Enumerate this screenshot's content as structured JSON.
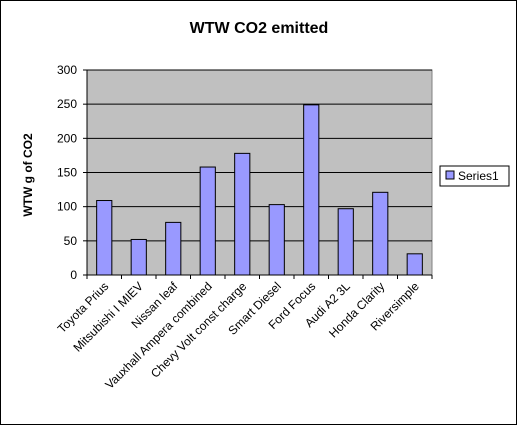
{
  "chart_data": {
    "type": "bar",
    "title": "WTW CO2 emitted",
    "xlabel": "",
    "ylabel": "WTW g of CO2",
    "ylim": [
      0,
      300
    ],
    "yticks": [
      0,
      50,
      100,
      150,
      200,
      250,
      300
    ],
    "grid": true,
    "legend_position": "right",
    "categories": [
      "Toyota Prius",
      "Mitsubishi I MIEV",
      "Nissan leaf",
      "Vauxhall Ampera combined",
      "Chevy Volt const charge",
      "Smart Diesel",
      "Ford Focus",
      "Audi A2 3L",
      "Honda Clarity",
      "Riversimple"
    ],
    "series": [
      {
        "name": "Series1",
        "values": [
          109,
          52,
          77,
          158,
          178,
          103,
          249,
          97,
          121,
          31
        ]
      }
    ],
    "colors": {
      "plot_background": "#c0c0c0",
      "bar_fill": "#9999ff",
      "bar_stroke": "#000000",
      "gridline": "#000000"
    }
  }
}
